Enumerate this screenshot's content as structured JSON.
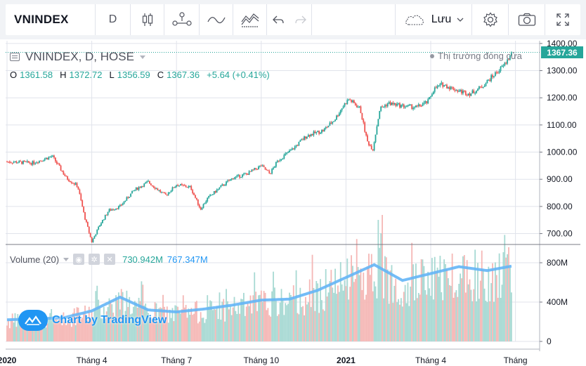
{
  "toolbar": {
    "symbol": "VNINDEX",
    "interval": "D",
    "save_label": "Lưu",
    "icons": [
      "candles-icon",
      "indicators-icon",
      "compare-icon",
      "templates-icon",
      "undo-icon",
      "redo-icon",
      "cloud-icon",
      "chevron-down-icon",
      "settings-icon",
      "camera-icon",
      "fullscreen-icon"
    ]
  },
  "legend": {
    "title": "VNINDEX, D, HOSE",
    "o_label": "O",
    "o_value": "1361.58",
    "h_label": "H",
    "h_value": "1372.72",
    "l_label": "L",
    "l_value": "1356.59",
    "c_label": "C",
    "c_value": "1367.36",
    "change": "+5.64 (+0.41%)",
    "market_status": "Thị trường đóng cửa"
  },
  "volume_legend": {
    "title": "Volume (20)",
    "value1": "730.942M",
    "value2": "767.347M"
  },
  "watermark": "Chart by TradingView",
  "last_price": "1367.36",
  "colors": {
    "up": "#26a69a",
    "down": "#ef5350",
    "vol_up": "#a7d9d3",
    "vol_down": "#f5b7b5",
    "vol_ma": "#64b5f6",
    "grid": "#e0e3eb"
  },
  "chart_data": {
    "type": "candlestick",
    "price_axis": {
      "ticks": [
        700,
        800,
        900,
        1000,
        1100,
        1200,
        1300,
        1400
      ],
      "tick_labels": [
        "700.00",
        "800.00",
        "900.00",
        "1000.00",
        "1100.00",
        "1200.00",
        "1300.00",
        "1400.00"
      ],
      "ylim": [
        660,
        1410
      ]
    },
    "volume_axis": {
      "ticks": [
        0,
        400,
        800
      ],
      "tick_labels": [
        "0",
        "400M",
        "800M"
      ],
      "ylim": [
        0,
        900
      ]
    },
    "time_axis": {
      "labels": [
        "2020",
        "Tháng 4",
        "Tháng 7",
        "Tháng 10",
        "2021",
        "Tháng 4",
        "Tháng"
      ],
      "label_month_index": [
        0,
        3,
        6,
        9,
        12,
        15,
        18
      ],
      "bold": [
        true,
        false,
        false,
        false,
        true,
        false,
        false
      ]
    },
    "price_path_monthly": {
      "month_index": [
        0,
        0.9,
        1.6,
        2.1,
        2.5,
        2.75,
        3.0,
        3.3,
        3.6,
        4.0,
        4.5,
        5.0,
        5.6,
        6.0,
        6.5,
        6.85,
        7.1,
        7.6,
        8.0,
        8.5,
        9.0,
        9.3,
        9.6,
        10.1,
        10.6,
        11.2,
        11.6,
        11.9,
        12.1,
        12.5,
        12.75,
        12.95,
        13.2,
        13.5,
        14.0,
        14.5,
        14.9,
        15.1,
        15.4,
        16.0,
        16.4,
        16.8,
        17.2,
        17.6,
        17.9
      ],
      "close": [
        965,
        960,
        985,
        905,
        875,
        760,
        670,
        735,
        785,
        800,
        860,
        890,
        840,
        880,
        870,
        790,
        830,
        875,
        905,
        920,
        950,
        920,
        970,
        1010,
        1060,
        1080,
        1120,
        1170,
        1195,
        1160,
        1040,
        1010,
        1160,
        1180,
        1170,
        1165,
        1185,
        1230,
        1250,
        1225,
        1215,
        1240,
        1280,
        1320,
        1367.36
      ]
    },
    "volume_path_monthly": {
      "month_index": [
        0,
        2,
        3,
        4,
        5,
        6,
        7,
        8,
        9,
        10,
        11,
        12,
        13,
        14,
        15,
        16,
        17,
        17.9
      ],
      "volume_ma20_millions": [
        220,
        240,
        310,
        450,
        320,
        300,
        330,
        370,
        420,
        430,
        520,
        650,
        780,
        620,
        690,
        760,
        720,
        767.347
      ]
    },
    "last_close": 1367.36
  }
}
